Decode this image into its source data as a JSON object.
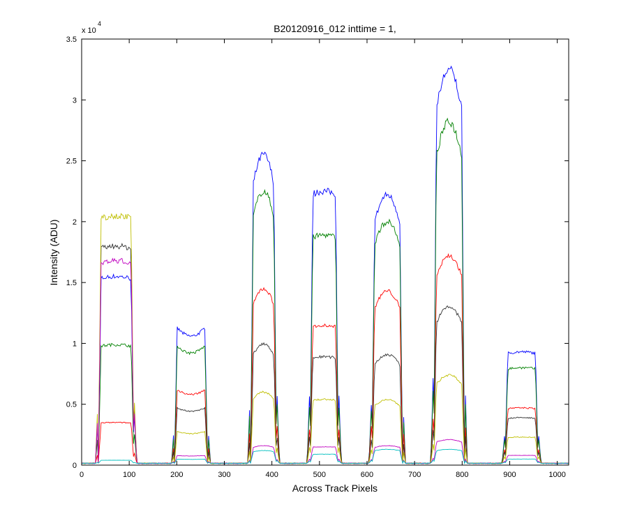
{
  "chart_data": {
    "type": "line",
    "title": "B20120916_012 inttime = 1,",
    "xlabel": "Across Track Pixels",
    "ylabel": "Intensity (ADU)",
    "xlim": [
      0,
      1024
    ],
    "ylim": [
      0,
      35000
    ],
    "x_ticks": [
      0,
      100,
      200,
      300,
      400,
      500,
      600,
      700,
      800,
      900,
      1000
    ],
    "y_ticks": [
      0,
      5000,
      10000,
      15000,
      20000,
      25000,
      30000,
      35000
    ],
    "y_tick_labels": [
      "0",
      "0.5",
      "1",
      "1.5",
      "2",
      "2.5",
      "3",
      "3.5"
    ],
    "y_multiplier": "x 10",
    "y_multiplier_exp": "4",
    "grid": false,
    "legend": "none",
    "baseline": 150,
    "bands": [
      {
        "start": 35,
        "end": 110,
        "shape": "flat"
      },
      {
        "start": 195,
        "end": 265,
        "shape": "dip"
      },
      {
        "start": 355,
        "end": 410,
        "shape": "peak"
      },
      {
        "start": 480,
        "end": 540,
        "shape": "flat"
      },
      {
        "start": 610,
        "end": 675,
        "shape": "peak"
      },
      {
        "start": 740,
        "end": 805,
        "shape": "peak"
      },
      {
        "start": 890,
        "end": 960,
        "shape": "flat"
      }
    ],
    "series": [
      {
        "color": "#0000ff",
        "levels": [
          15500,
          11500,
          25500,
          22500,
          22200,
          32500,
          9300
        ]
      },
      {
        "color": "#008000",
        "levels": [
          9900,
          10000,
          22500,
          18900,
          20000,
          28200,
          8000
        ]
      },
      {
        "color": "#ff0000",
        "levels": [
          3500,
          6300,
          14500,
          11500,
          14300,
          17200,
          4700
        ]
      },
      {
        "color": "#333333",
        "levels": [
          18000,
          4800,
          10000,
          8900,
          9100,
          13000,
          3900
        ]
      },
      {
        "color": "#bfbf00",
        "levels": [
          20500,
          2800,
          6000,
          5400,
          5400,
          7400,
          2300
        ]
      },
      {
        "color": "#bf00bf",
        "levels": [
          16800,
          800,
          1600,
          1500,
          1600,
          2100,
          800
        ]
      },
      {
        "color": "#00bfbf",
        "levels": [
          400,
          500,
          1200,
          900,
          1300,
          1300,
          500
        ]
      }
    ]
  }
}
